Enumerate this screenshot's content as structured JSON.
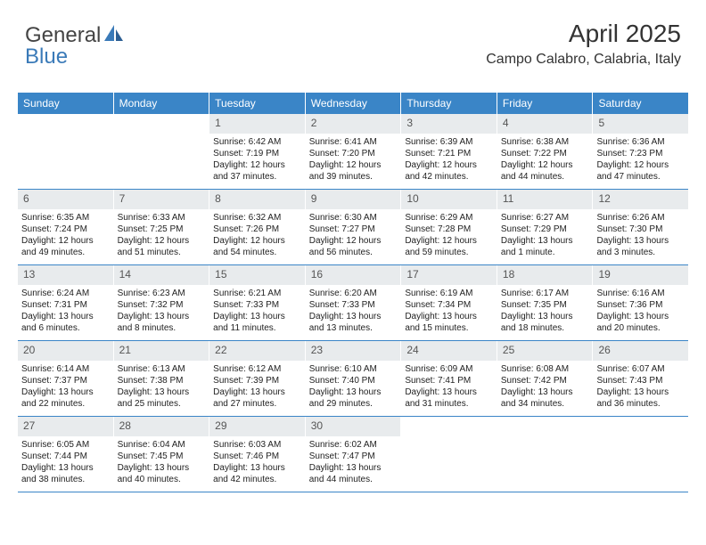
{
  "logo": {
    "part1": "General",
    "part2": "Blue"
  },
  "header": {
    "month_title": "April 2025",
    "location": "Campo Calabro, Calabria, Italy"
  },
  "weekdays": [
    "Sunday",
    "Monday",
    "Tuesday",
    "Wednesday",
    "Thursday",
    "Friday",
    "Saturday"
  ],
  "colors": {
    "header_bg": "#3a85c7",
    "daynum_bg": "#e8ebed",
    "accent": "#3a7ab8"
  },
  "weeks": [
    [
      null,
      null,
      {
        "num": "1",
        "sunrise": "Sunrise: 6:42 AM",
        "sunset": "Sunset: 7:19 PM",
        "day1": "Daylight: 12 hours",
        "day2": "and 37 minutes."
      },
      {
        "num": "2",
        "sunrise": "Sunrise: 6:41 AM",
        "sunset": "Sunset: 7:20 PM",
        "day1": "Daylight: 12 hours",
        "day2": "and 39 minutes."
      },
      {
        "num": "3",
        "sunrise": "Sunrise: 6:39 AM",
        "sunset": "Sunset: 7:21 PM",
        "day1": "Daylight: 12 hours",
        "day2": "and 42 minutes."
      },
      {
        "num": "4",
        "sunrise": "Sunrise: 6:38 AM",
        "sunset": "Sunset: 7:22 PM",
        "day1": "Daylight: 12 hours",
        "day2": "and 44 minutes."
      },
      {
        "num": "5",
        "sunrise": "Sunrise: 6:36 AM",
        "sunset": "Sunset: 7:23 PM",
        "day1": "Daylight: 12 hours",
        "day2": "and 47 minutes."
      }
    ],
    [
      {
        "num": "6",
        "sunrise": "Sunrise: 6:35 AM",
        "sunset": "Sunset: 7:24 PM",
        "day1": "Daylight: 12 hours",
        "day2": "and 49 minutes."
      },
      {
        "num": "7",
        "sunrise": "Sunrise: 6:33 AM",
        "sunset": "Sunset: 7:25 PM",
        "day1": "Daylight: 12 hours",
        "day2": "and 51 minutes."
      },
      {
        "num": "8",
        "sunrise": "Sunrise: 6:32 AM",
        "sunset": "Sunset: 7:26 PM",
        "day1": "Daylight: 12 hours",
        "day2": "and 54 minutes."
      },
      {
        "num": "9",
        "sunrise": "Sunrise: 6:30 AM",
        "sunset": "Sunset: 7:27 PM",
        "day1": "Daylight: 12 hours",
        "day2": "and 56 minutes."
      },
      {
        "num": "10",
        "sunrise": "Sunrise: 6:29 AM",
        "sunset": "Sunset: 7:28 PM",
        "day1": "Daylight: 12 hours",
        "day2": "and 59 minutes."
      },
      {
        "num": "11",
        "sunrise": "Sunrise: 6:27 AM",
        "sunset": "Sunset: 7:29 PM",
        "day1": "Daylight: 13 hours",
        "day2": "and 1 minute."
      },
      {
        "num": "12",
        "sunrise": "Sunrise: 6:26 AM",
        "sunset": "Sunset: 7:30 PM",
        "day1": "Daylight: 13 hours",
        "day2": "and 3 minutes."
      }
    ],
    [
      {
        "num": "13",
        "sunrise": "Sunrise: 6:24 AM",
        "sunset": "Sunset: 7:31 PM",
        "day1": "Daylight: 13 hours",
        "day2": "and 6 minutes."
      },
      {
        "num": "14",
        "sunrise": "Sunrise: 6:23 AM",
        "sunset": "Sunset: 7:32 PM",
        "day1": "Daylight: 13 hours",
        "day2": "and 8 minutes."
      },
      {
        "num": "15",
        "sunrise": "Sunrise: 6:21 AM",
        "sunset": "Sunset: 7:33 PM",
        "day1": "Daylight: 13 hours",
        "day2": "and 11 minutes."
      },
      {
        "num": "16",
        "sunrise": "Sunrise: 6:20 AM",
        "sunset": "Sunset: 7:33 PM",
        "day1": "Daylight: 13 hours",
        "day2": "and 13 minutes."
      },
      {
        "num": "17",
        "sunrise": "Sunrise: 6:19 AM",
        "sunset": "Sunset: 7:34 PM",
        "day1": "Daylight: 13 hours",
        "day2": "and 15 minutes."
      },
      {
        "num": "18",
        "sunrise": "Sunrise: 6:17 AM",
        "sunset": "Sunset: 7:35 PM",
        "day1": "Daylight: 13 hours",
        "day2": "and 18 minutes."
      },
      {
        "num": "19",
        "sunrise": "Sunrise: 6:16 AM",
        "sunset": "Sunset: 7:36 PM",
        "day1": "Daylight: 13 hours",
        "day2": "and 20 minutes."
      }
    ],
    [
      {
        "num": "20",
        "sunrise": "Sunrise: 6:14 AM",
        "sunset": "Sunset: 7:37 PM",
        "day1": "Daylight: 13 hours",
        "day2": "and 22 minutes."
      },
      {
        "num": "21",
        "sunrise": "Sunrise: 6:13 AM",
        "sunset": "Sunset: 7:38 PM",
        "day1": "Daylight: 13 hours",
        "day2": "and 25 minutes."
      },
      {
        "num": "22",
        "sunrise": "Sunrise: 6:12 AM",
        "sunset": "Sunset: 7:39 PM",
        "day1": "Daylight: 13 hours",
        "day2": "and 27 minutes."
      },
      {
        "num": "23",
        "sunrise": "Sunrise: 6:10 AM",
        "sunset": "Sunset: 7:40 PM",
        "day1": "Daylight: 13 hours",
        "day2": "and 29 minutes."
      },
      {
        "num": "24",
        "sunrise": "Sunrise: 6:09 AM",
        "sunset": "Sunset: 7:41 PM",
        "day1": "Daylight: 13 hours",
        "day2": "and 31 minutes."
      },
      {
        "num": "25",
        "sunrise": "Sunrise: 6:08 AM",
        "sunset": "Sunset: 7:42 PM",
        "day1": "Daylight: 13 hours",
        "day2": "and 34 minutes."
      },
      {
        "num": "26",
        "sunrise": "Sunrise: 6:07 AM",
        "sunset": "Sunset: 7:43 PM",
        "day1": "Daylight: 13 hours",
        "day2": "and 36 minutes."
      }
    ],
    [
      {
        "num": "27",
        "sunrise": "Sunrise: 6:05 AM",
        "sunset": "Sunset: 7:44 PM",
        "day1": "Daylight: 13 hours",
        "day2": "and 38 minutes."
      },
      {
        "num": "28",
        "sunrise": "Sunrise: 6:04 AM",
        "sunset": "Sunset: 7:45 PM",
        "day1": "Daylight: 13 hours",
        "day2": "and 40 minutes."
      },
      {
        "num": "29",
        "sunrise": "Sunrise: 6:03 AM",
        "sunset": "Sunset: 7:46 PM",
        "day1": "Daylight: 13 hours",
        "day2": "and 42 minutes."
      },
      {
        "num": "30",
        "sunrise": "Sunrise: 6:02 AM",
        "sunset": "Sunset: 7:47 PM",
        "day1": "Daylight: 13 hours",
        "day2": "and 44 minutes."
      },
      null,
      null,
      null
    ]
  ]
}
